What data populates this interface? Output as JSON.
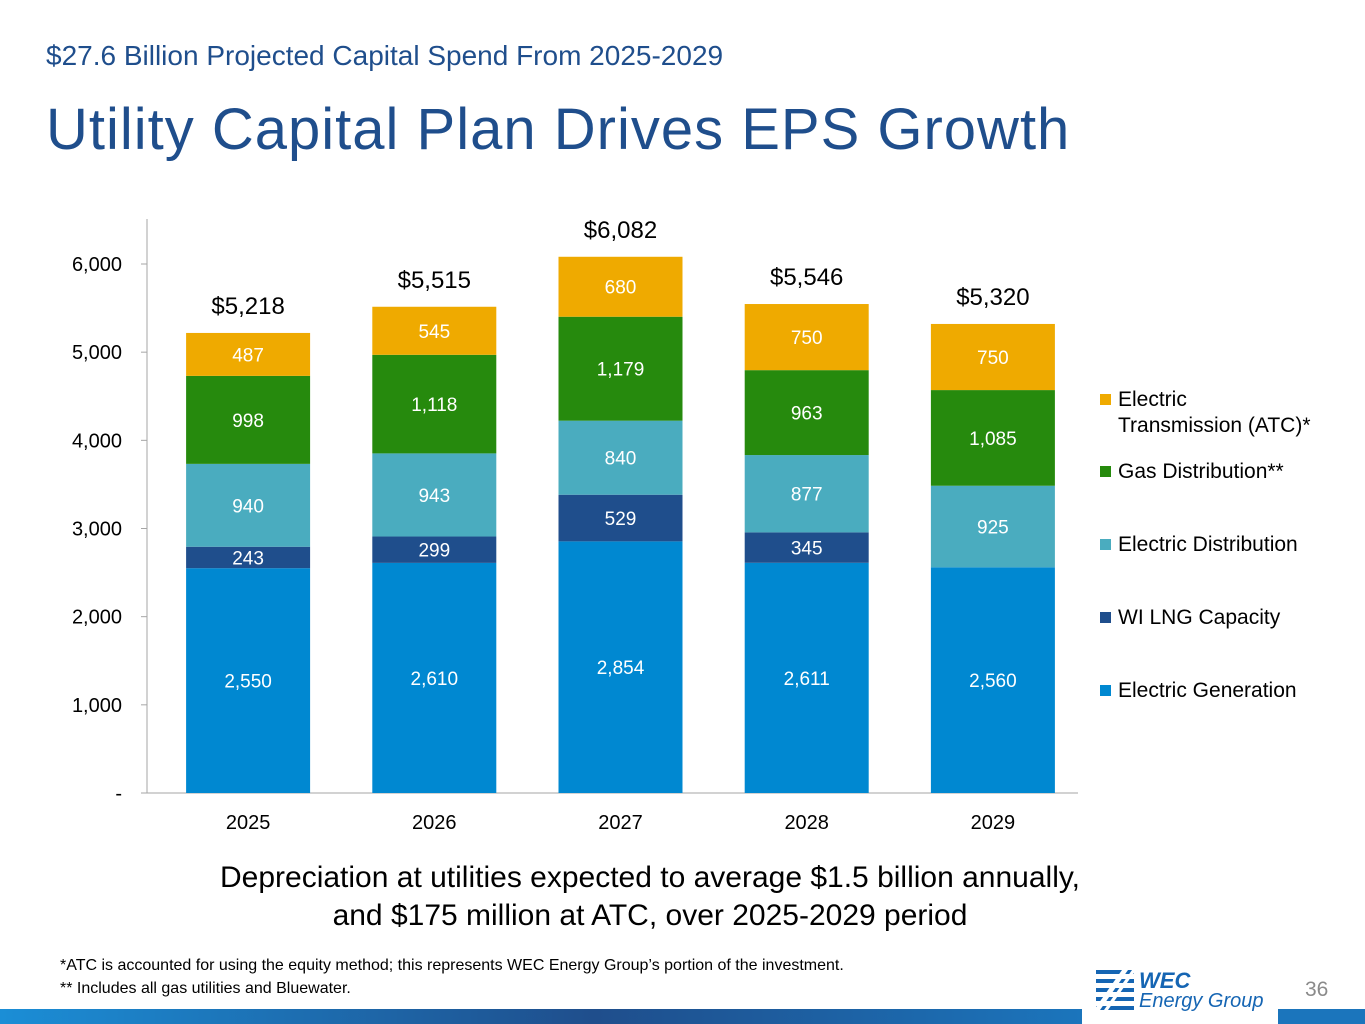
{
  "header": {
    "subtitle": "$27.6 Billion Projected Capital Spend From 2025-2029",
    "title": "Utility Capital Plan Drives EPS Growth"
  },
  "chart_data": {
    "type": "bar",
    "stacked": true,
    "categories": [
      "2025",
      "2026",
      "2027",
      "2028",
      "2029"
    ],
    "ylim": [
      0,
      6500
    ],
    "yticks": [
      0,
      1000,
      2000,
      3000,
      4000,
      5000,
      6000
    ],
    "ytick_labels": [
      "-",
      "1,000",
      "2,000",
      "3,000",
      "4,000",
      "5,000",
      "6,000"
    ],
    "grid": false,
    "legend_position": "right",
    "series": [
      {
        "name": "Electric Generation",
        "color": "#0088d1",
        "values": [
          2550,
          2610,
          2854,
          2611,
          2560
        ],
        "labels": [
          "2,550",
          "2,610",
          "2,854",
          "2,611",
          "2,560"
        ]
      },
      {
        "name": "WI LNG Capacity",
        "color": "#1f4e8c",
        "values": [
          243,
          299,
          529,
          345,
          0
        ],
        "labels": [
          "243",
          "299",
          "529",
          "345",
          ""
        ]
      },
      {
        "name": "Electric Distribution",
        "color": "#4aacbf",
        "values": [
          940,
          943,
          840,
          877,
          925
        ],
        "labels": [
          "940",
          "943",
          "840",
          "877",
          "925"
        ]
      },
      {
        "name": "Gas Distribution**",
        "color": "#268a0d",
        "values": [
          998,
          1118,
          1179,
          963,
          1085
        ],
        "labels": [
          "998",
          "1,118",
          "1,179",
          "963",
          "1,085"
        ]
      },
      {
        "name": "Electric Transmission (ATC)*",
        "color": "#efaa00",
        "values": [
          487,
          545,
          680,
          750,
          750
        ],
        "labels": [
          "487",
          "545",
          "680",
          "750",
          "750"
        ]
      }
    ],
    "totals": [
      5218,
      5515,
      6082,
      5546,
      5320
    ],
    "total_labels": [
      "$5,218",
      "$5,515",
      "$6,082",
      "$5,546",
      "$5,320"
    ]
  },
  "legend": {
    "items": [
      {
        "label_line1": "Electric",
        "label_line2": "Transmission (ATC)*",
        "color": "#efaa00"
      },
      {
        "label_line1": "Gas Distribution**",
        "label_line2": "",
        "color": "#268a0d"
      },
      {
        "label_line1": "Electric Distribution",
        "label_line2": "",
        "color": "#4aacbf"
      },
      {
        "label_line1": "WI LNG Capacity",
        "label_line2": "",
        "color": "#1f4e8c"
      },
      {
        "label_line1": "Electric Generation",
        "label_line2": "",
        "color": "#0088d1"
      }
    ]
  },
  "note": {
    "line1": "Depreciation at utilities expected to average $1.5 billion annually,",
    "line2": "and $175 million at ATC, over 2025-2029 period"
  },
  "footnotes": {
    "line1": "*ATC is accounted for using the equity method; this represents WEC Energy Group’s portion of the investment.",
    "line2": "** Includes all gas utilities and Bluewater."
  },
  "footer": {
    "page_number": "36",
    "logo_line1": "WEC",
    "logo_line2": "Energy Group"
  }
}
